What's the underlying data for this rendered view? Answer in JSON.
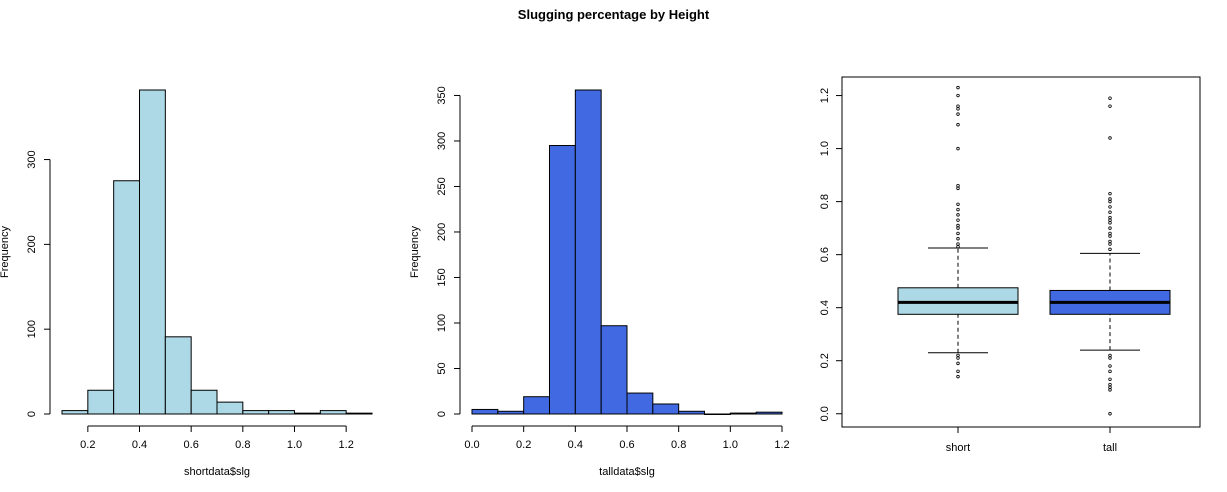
{
  "figure": {
    "title": "Slugging percentage by Height"
  },
  "chart_data": [
    {
      "type": "bar",
      "subtype": "histogram",
      "xlabel": "shortdata$slg",
      "ylabel": "Frequency",
      "bin_edges": [
        0.1,
        0.2,
        0.3,
        0.4,
        0.5,
        0.6,
        0.7,
        0.8,
        0.9,
        1.0,
        1.1,
        1.2,
        1.3
      ],
      "values": [
        4,
        28,
        275,
        382,
        91,
        28,
        14,
        4,
        4,
        1,
        4,
        1
      ],
      "xlim": [
        0.1,
        1.3
      ],
      "ylim": [
        0,
        382
      ],
      "xticks": [
        0.2,
        0.4,
        0.6,
        0.8,
        1.0,
        1.2
      ],
      "xtick_labels": [
        "0.2",
        "0.4",
        "0.6",
        "0.8",
        "1.0",
        "1.2"
      ],
      "yticks": [
        0,
        100,
        200,
        300
      ],
      "ytick_labels": [
        "0",
        "100",
        "200",
        "300"
      ],
      "color": "#add8e6"
    },
    {
      "type": "bar",
      "subtype": "histogram",
      "xlabel": "talldata$slg",
      "ylabel": "Frequency",
      "bin_edges": [
        0.0,
        0.1,
        0.2,
        0.3,
        0.4,
        0.5,
        0.6,
        0.7,
        0.8,
        0.9,
        1.0,
        1.1,
        1.2
      ],
      "values": [
        5,
        3,
        19,
        295,
        356,
        97,
        23,
        11,
        3,
        0,
        1,
        2
      ],
      "xlim": [
        0.0,
        1.2
      ],
      "ylim": [
        0,
        356
      ],
      "xticks": [
        0.0,
        0.2,
        0.4,
        0.6,
        0.8,
        1.0,
        1.2
      ],
      "xtick_labels": [
        "0.0",
        "0.2",
        "0.4",
        "0.6",
        "0.8",
        "1.0",
        "1.2"
      ],
      "yticks": [
        0,
        50,
        100,
        150,
        200,
        250,
        300,
        350
      ],
      "ytick_labels": [
        "0",
        "50",
        "100",
        "150",
        "200",
        "250",
        "300",
        "350"
      ],
      "color": "#4169e1"
    },
    {
      "type": "box",
      "categories": [
        "short",
        "tall"
      ],
      "ylim": [
        -0.05,
        1.27
      ],
      "yticks": [
        0.0,
        0.2,
        0.4,
        0.6,
        0.8,
        1.0,
        1.2
      ],
      "ytick_labels": [
        "0.0",
        "0.2",
        "0.4",
        "0.6",
        "0.8",
        "1.0",
        "1.2"
      ],
      "boxes": [
        {
          "name": "short",
          "whisker_low": 0.23,
          "q1": 0.375,
          "median": 0.42,
          "q3": 0.475,
          "whisker_high": 0.625,
          "outliers": [
            0.14,
            0.16,
            0.19,
            0.21,
            0.22,
            0.63,
            0.64,
            0.66,
            0.68,
            0.7,
            0.71,
            0.73,
            0.75,
            0.77,
            0.79,
            0.85,
            0.86,
            1.0,
            1.09,
            1.13,
            1.15,
            1.16,
            1.2,
            1.23
          ],
          "color": "#add8e6"
        },
        {
          "name": "tall",
          "whisker_low": 0.24,
          "q1": 0.375,
          "median": 0.42,
          "q3": 0.465,
          "whisker_high": 0.605,
          "outliers": [
            0.0,
            0.09,
            0.1,
            0.11,
            0.13,
            0.16,
            0.18,
            0.21,
            0.22,
            0.62,
            0.64,
            0.65,
            0.67,
            0.68,
            0.7,
            0.72,
            0.73,
            0.74,
            0.76,
            0.78,
            0.8,
            0.81,
            0.83,
            1.04,
            1.16,
            1.19
          ],
          "color": "#4169e1"
        }
      ]
    }
  ]
}
